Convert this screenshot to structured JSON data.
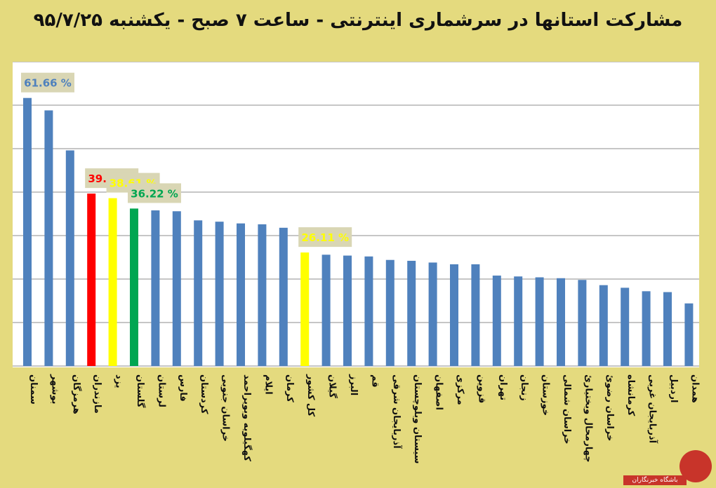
{
  "chart_data": {
    "type": "bar",
    "title": "مشارکت استانها در سرشماری اینترنتی - ساعت ۷ صبح - یکشنبه ۹۵/۷/۲۵",
    "xlabel": "",
    "ylabel": "",
    "ylim": [
      0,
      70
    ],
    "grid": true,
    "categories": [
      "سمنان",
      "بوشهر",
      "هرمزگان",
      "مازندران",
      "یزد",
      "گلستان",
      "لرستان",
      "فارس",
      "کردستان",
      "خراسان جنوبی",
      "کهگیلویه وبویراحمد",
      "ایلام",
      "کرمان",
      "کل کشور",
      "گیلان",
      "البرز",
      "قم",
      "آذربایجان شرقی",
      "سیستان وبلوچستان",
      "اصفهان",
      "مرکزی",
      "قزوین",
      "تهران",
      "زنجان",
      "خوزستان",
      "خراسان شمالی",
      "چهارمحال وبختیاریٔ",
      "خراسان رضویٔ",
      "کرمانشاه",
      "آذربایجان غربی",
      "اردبیل",
      "همدان"
    ],
    "values": [
      61.66,
      58.8,
      49.6,
      39.66,
      38.61,
      36.22,
      35.8,
      35.6,
      33.5,
      33.2,
      32.8,
      32.6,
      31.8,
      26.11,
      25.6,
      25.4,
      25.2,
      24.4,
      24.2,
      23.8,
      23.4,
      23.4,
      20.8,
      20.6,
      20.4,
      20.2,
      19.8,
      18.6,
      18.0,
      17.2,
      17.0,
      14.4
    ],
    "bar_colors": [
      "#4f81bd",
      "#4f81bd",
      "#4f81bd",
      "#ff0000",
      "#ffff00",
      "#00a651",
      "#4f81bd",
      "#4f81bd",
      "#4f81bd",
      "#4f81bd",
      "#4f81bd",
      "#4f81bd",
      "#4f81bd",
      "#ffff00",
      "#4f81bd",
      "#4f81bd",
      "#4f81bd",
      "#4f81bd",
      "#4f81bd",
      "#4f81bd",
      "#4f81bd",
      "#4f81bd",
      "#4f81bd",
      "#4f81bd",
      "#4f81bd",
      "#4f81bd",
      "#4f81bd",
      "#4f81bd",
      "#4f81bd",
      "#4f81bd",
      "#4f81bd",
      "#4f81bd"
    ],
    "annotations": [
      {
        "index": 0,
        "text": "61.66 %",
        "color": "#4f81bd"
      },
      {
        "index": 3,
        "text": "39.66 %",
        "color": "#ff0000"
      },
      {
        "index": 4,
        "text": "38.61 %",
        "color": "#ffff00"
      },
      {
        "index": 5,
        "text": "36.22 %",
        "color": "#00a651"
      },
      {
        "index": 13,
        "text": "26.11 %",
        "color": "#ffff00"
      }
    ],
    "annotation_bg": "#d9d6b4",
    "gridline_count": 7
  },
  "watermark": {
    "text": "باشگاه خبرنگاران"
  }
}
